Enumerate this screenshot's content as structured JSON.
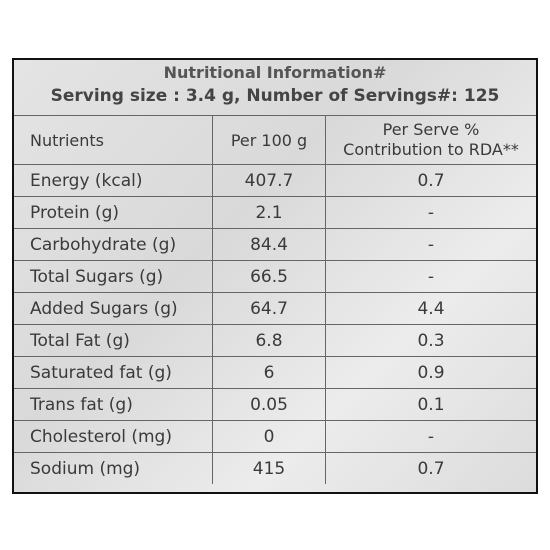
{
  "header": {
    "title": "Nutritional Information#",
    "serving": "Serving size : 3.4 g, Number of Servings#: 125"
  },
  "table": {
    "columns": [
      "Nutrients",
      "Per 100 g",
      [
        "Per Serve %",
        "Contribution to RDA**"
      ]
    ],
    "rows": [
      [
        "Energy (kcal)",
        "407.7",
        "0.7"
      ],
      [
        "Protein (g)",
        "2.1",
        "-"
      ],
      [
        "Carbohydrate (g)",
        "84.4",
        "-"
      ],
      [
        "Total Sugars (g)",
        "66.5",
        "-"
      ],
      [
        "Added Sugars (g)",
        "64.7",
        "4.4"
      ],
      [
        "Total Fat (g)",
        "6.8",
        "0.3"
      ],
      [
        "Saturated fat (g)",
        "6",
        "0.9"
      ],
      [
        "Trans fat (g)",
        "0.05",
        "0.1"
      ],
      [
        "Cholesterol (mg)",
        "0",
        "-"
      ],
      [
        "Sodium (mg)",
        "415",
        "0.7"
      ]
    ]
  }
}
